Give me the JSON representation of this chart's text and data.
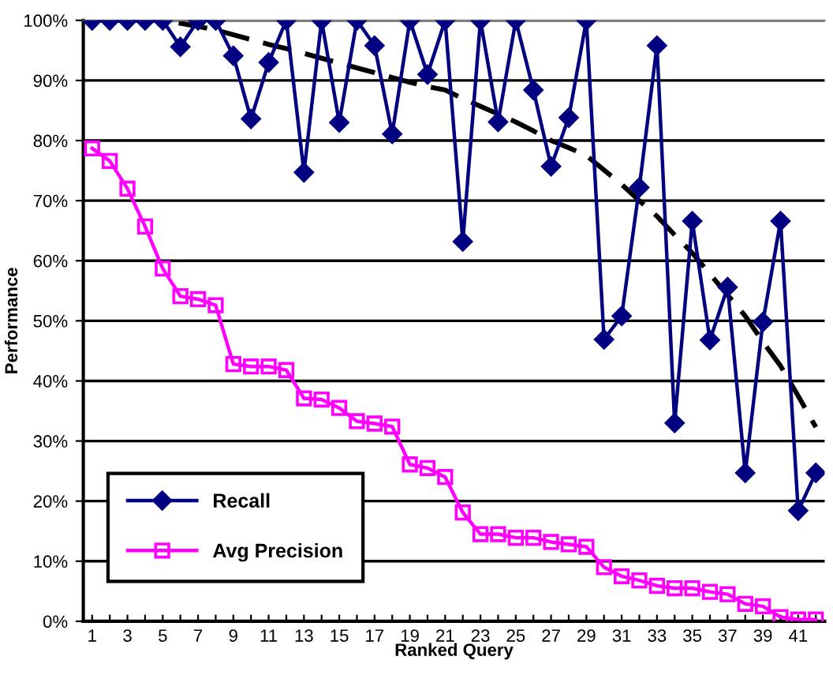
{
  "chart_data": {
    "type": "line",
    "xlabel": "Ranked Query",
    "ylabel": "Performance",
    "categories": [
      "1",
      null,
      "3",
      null,
      "5",
      null,
      "7",
      null,
      "9",
      null,
      "11",
      null,
      "13",
      null,
      "15",
      null,
      "17",
      null,
      "19",
      null,
      "21",
      null,
      "23",
      null,
      "25",
      null,
      "27",
      null,
      "29",
      null,
      "31",
      null,
      "33",
      null,
      "35",
      null,
      "37",
      null,
      "39",
      null,
      "41",
      null
    ],
    "series": [
      {
        "name": "Recall",
        "color": "#000080",
        "marker": "diamond",
        "values": [
          100,
          100,
          100,
          100,
          100,
          95.6,
          100,
          100,
          94.1,
          83.6,
          93.0,
          100,
          74.7,
          100,
          83.0,
          100,
          95.8,
          81.1,
          100,
          91.0,
          100,
          63.2,
          100,
          83.1,
          100,
          88.4,
          75.7,
          83.8,
          100,
          46.9,
          50.8,
          72.2,
          95.8,
          33.0,
          66.6,
          46.8,
          55.6,
          24.7,
          49.8,
          66.6,
          18.4,
          24.7
        ]
      },
      {
        "name": "Avg Precision",
        "color": "#ff00ff",
        "marker": "square",
        "values": [
          78.7,
          76.6,
          72.0,
          65.7,
          58.7,
          54.1,
          53.6,
          52.6,
          42.8,
          42.4,
          42.4,
          41.8,
          37.1,
          36.9,
          35.5,
          33.3,
          32.9,
          32.4,
          26.1,
          25.5,
          24.0,
          18.1,
          14.5,
          14.5,
          13.9,
          13.9,
          13.2,
          12.8,
          12.4,
          9.0,
          7.5,
          6.8,
          5.9,
          5.5,
          5.5,
          4.9,
          4.5,
          2.9,
          2.5,
          0.7,
          0.3,
          0.3
        ]
      },
      {
        "type": "line",
        "color": "#000000",
        "line_style": "dashed",
        "marker": "none",
        "values": [
          100,
          100,
          100,
          100,
          100,
          99.5,
          99,
          98.4,
          97.6,
          96.8,
          96,
          95.3,
          94.5,
          93.7,
          92.9,
          92.1,
          91.3,
          90.5,
          89.7,
          89,
          88.4,
          87,
          85.7,
          84.4,
          83.1,
          81.6,
          80,
          78.8,
          77.5,
          75.1,
          72.7,
          70,
          67.4,
          64.3,
          61.3,
          57.8,
          54.3,
          50.8,
          46.5,
          42.5,
          37.5,
          32.3
        ]
      }
    ],
    "ylim": [
      0,
      100
    ],
    "yticks": [
      {
        "value": 0,
        "label": "0%"
      },
      {
        "value": 10,
        "label": "10%"
      },
      {
        "value": 20,
        "label": "20%"
      },
      {
        "value": 30,
        "label": "30%"
      },
      {
        "value": 40,
        "label": "40%"
      },
      {
        "value": 50,
        "label": "50%"
      },
      {
        "value": 60,
        "label": "60%"
      },
      {
        "value": 70,
        "label": "70%"
      },
      {
        "value": 80,
        "label": "80%"
      },
      {
        "value": 90,
        "label": "90%"
      },
      {
        "value": 100,
        "label": "100%"
      }
    ],
    "grid": "y",
    "legend": "bottom left"
  }
}
